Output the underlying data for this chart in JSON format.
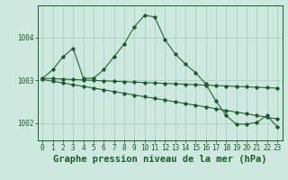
{
  "title": "Graphe pression niveau de la mer (hPa)",
  "bg_color": "#cde8df",
  "grid_color": "#a8cfc4",
  "line_color": "#1a5c28",
  "x": [
    0,
    1,
    2,
    3,
    4,
    5,
    6,
    7,
    8,
    9,
    10,
    11,
    12,
    13,
    14,
    15,
    16,
    17,
    18,
    19,
    20,
    21,
    22,
    23
  ],
  "line1": [
    1003.05,
    1003.25,
    1003.55,
    1003.75,
    1003.05,
    1003.05,
    1003.25,
    1003.55,
    1003.85,
    1004.25,
    1004.52,
    1004.48,
    1003.95,
    1003.62,
    1003.38,
    1003.18,
    1002.92,
    1002.52,
    1002.18,
    1001.98,
    1001.98,
    1002.02,
    1002.18,
    1001.92
  ],
  "line2": [
    1003.02,
    1002.98,
    1002.94,
    1002.9,
    1002.86,
    1002.82,
    1002.78,
    1002.74,
    1002.7,
    1002.66,
    1002.62,
    1002.58,
    1002.54,
    1002.5,
    1002.46,
    1002.42,
    1002.38,
    1002.34,
    1002.3,
    1002.26,
    1002.22,
    1002.18,
    1002.14,
    1002.1
  ],
  "line3": [
    1003.05,
    1003.04,
    1003.03,
    1003.02,
    1003.01,
    1003.0,
    1002.99,
    1002.98,
    1002.97,
    1002.96,
    1002.95,
    1002.94,
    1002.93,
    1002.92,
    1002.91,
    1002.9,
    1002.89,
    1002.88,
    1002.87,
    1002.86,
    1002.85,
    1002.84,
    1002.83,
    1002.82
  ],
  "ylim": [
    1001.6,
    1004.75
  ],
  "yticks": [
    1002,
    1003,
    1004
  ],
  "title_fontsize": 7.5,
  "tick_fontsize": 5.5
}
